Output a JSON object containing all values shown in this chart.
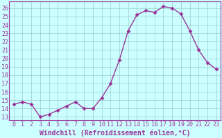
{
  "x": [
    0,
    1,
    2,
    3,
    4,
    5,
    6,
    7,
    8,
    9,
    10,
    11,
    12,
    13,
    14,
    15,
    16,
    17,
    18,
    19,
    20,
    21,
    22,
    23
  ],
  "y": [
    14.5,
    14.8,
    14.5,
    13.0,
    13.3,
    13.8,
    14.3,
    14.8,
    14.0,
    14.0,
    15.3,
    17.0,
    19.8,
    23.3,
    25.2,
    25.7,
    25.5,
    26.2,
    26.0,
    25.3,
    23.3,
    21.0,
    19.5,
    18.7
  ],
  "line_color": "#993399",
  "marker": "D",
  "markersize": 2.5,
  "linewidth": 1.0,
  "xlabel": "Windchill (Refroidissement éolien,°C)",
  "xlabel_fontsize": 7,
  "ylabel_ticks": [
    13,
    14,
    15,
    16,
    17,
    18,
    19,
    20,
    21,
    22,
    23,
    24,
    25,
    26
  ],
  "ylim": [
    12.6,
    26.8
  ],
  "xlim": [
    -0.5,
    23.5
  ],
  "xticks": [
    0,
    1,
    2,
    3,
    4,
    5,
    6,
    7,
    8,
    9,
    10,
    11,
    12,
    13,
    14,
    15,
    16,
    17,
    18,
    19,
    20,
    21,
    22,
    23
  ],
  "background_color": "#ccffff",
  "grid_color": "#99cccc",
  "tick_color": "#993399",
  "tick_fontsize": 6,
  "spine_color": "#993399",
  "spine_bottom_color": "#993399"
}
